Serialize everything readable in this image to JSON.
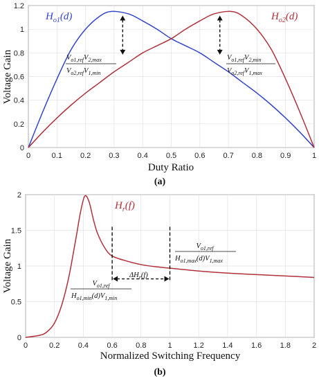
{
  "chart_data": [
    {
      "type": "line",
      "caption": "(a)",
      "xlabel": "Duty Ratio",
      "ylabel": "Voltage Gain",
      "xlim": [
        0,
        1
      ],
      "ylim": [
        0,
        1.2
      ],
      "xticks": [
        "0",
        "0.1",
        "0.2",
        "0.3",
        "0.4",
        "0.5",
        "0.6",
        "0.7",
        "0.8",
        "0.9",
        "1"
      ],
      "yticks": [
        "0",
        "0.2",
        "0.4",
        "0.6",
        "0.8",
        "1",
        "1.2"
      ],
      "grid": true,
      "series": [
        {
          "name": "Ho1(d)",
          "color": "#3344cc",
          "x": [
            0,
            0.05,
            0.1,
            0.15,
            0.2,
            0.25,
            0.29,
            0.35,
            0.4,
            0.45,
            0.5,
            0.55,
            0.6,
            0.65,
            0.7,
            0.75,
            0.8,
            0.85,
            0.9,
            0.95,
            1
          ],
          "y": [
            0,
            0.3,
            0.58,
            0.83,
            1.0,
            1.11,
            1.15,
            1.13,
            1.07,
            1.0,
            0.92,
            0.86,
            0.8,
            0.72,
            0.64,
            0.55,
            0.46,
            0.36,
            0.25,
            0.13,
            0
          ]
        },
        {
          "name": "Ho2(d)",
          "color": "#b0303a",
          "x": [
            0,
            0.05,
            0.1,
            0.15,
            0.2,
            0.25,
            0.3,
            0.35,
            0.4,
            0.45,
            0.5,
            0.55,
            0.6,
            0.65,
            0.71,
            0.75,
            0.8,
            0.85,
            0.9,
            0.95,
            1
          ],
          "y": [
            0,
            0.13,
            0.25,
            0.36,
            0.46,
            0.55,
            0.64,
            0.72,
            0.8,
            0.86,
            0.92,
            1.0,
            1.07,
            1.13,
            1.15,
            1.11,
            1.0,
            0.83,
            0.58,
            0.3,
            0
          ]
        }
      ],
      "series_labels": {
        "main": [
          "H",
          "H"
        ],
        "sub": [
          "o1",
          "o2"
        ],
        "arg": [
          "(d)",
          "(d)"
        ]
      },
      "annotations": [
        {
          "at_x": 0.33,
          "from_y": 1.15,
          "to_y": 0.75,
          "num_parts": [
            "V",
            "o1,ref",
            "V",
            "2,max"
          ],
          "den_parts": [
            "V",
            "o2,ref",
            "V",
            "1,min"
          ]
        },
        {
          "at_x": 0.67,
          "from_y": 1.15,
          "to_y": 0.75,
          "num_parts": [
            "V",
            "o1,ref",
            "V",
            "2,min"
          ],
          "den_parts": [
            "V",
            "o2,ref",
            "V",
            "1,max"
          ]
        }
      ]
    },
    {
      "type": "line",
      "caption": "(b)",
      "xlabel": "Normalized Switching Frequency",
      "ylabel": "Voltage Gain",
      "xlim": [
        0,
        2
      ],
      "ylim": [
        0,
        2
      ],
      "xticks": [
        "0",
        "0.2",
        "0.4",
        "0.6",
        "0.8",
        "1",
        "1.2",
        "1.4",
        "1.6",
        "1.8",
        "2"
      ],
      "yticks": [
        "0",
        "0.5",
        "1",
        "1.5",
        "2"
      ],
      "grid": true,
      "series": [
        {
          "name": "Hr(f)",
          "color": "#b0303a",
          "x": [
            0,
            0.1,
            0.15,
            0.2,
            0.25,
            0.3,
            0.35,
            0.38,
            0.41,
            0.44,
            0.47,
            0.5,
            0.55,
            0.6,
            0.7,
            0.8,
            0.9,
            1.0,
            1.2,
            1.4,
            1.6,
            1.8,
            2.0
          ],
          "y": [
            0,
            0.03,
            0.08,
            0.2,
            0.45,
            0.85,
            1.4,
            1.75,
            1.98,
            1.9,
            1.65,
            1.45,
            1.25,
            1.14,
            1.07,
            1.02,
            0.99,
            0.97,
            0.93,
            0.9,
            0.88,
            0.86,
            0.84
          ]
        }
      ],
      "series_labels": {
        "main": [
          "H"
        ],
        "sub": [
          "r"
        ],
        "arg": [
          "(f)"
        ]
      },
      "annotations": [
        {
          "kind": "vline",
          "at_x": 0.6,
          "y1": 1.55,
          "y2": 0.78
        },
        {
          "kind": "vline",
          "at_x": 1.0,
          "y1": 1.55,
          "y2": 0.78
        },
        {
          "kind": "double_arrow",
          "x1": 0.6,
          "x2": 1.0,
          "y": 0.82,
          "label_main": "ΔH",
          "label_sub": "r",
          "label_arg": "(f)"
        },
        {
          "kind": "fraction",
          "at": "right",
          "num_parts": [
            "V",
            "o1,ref"
          ],
          "den_parts": [
            "H",
            "o1,max",
            "(d)V",
            "1,max"
          ]
        },
        {
          "kind": "fraction",
          "at": "left",
          "num_parts": [
            "V",
            "o1,ref"
          ],
          "den_parts": [
            "H",
            "o1,min",
            "(d)V",
            "1,min"
          ]
        }
      ]
    }
  ]
}
